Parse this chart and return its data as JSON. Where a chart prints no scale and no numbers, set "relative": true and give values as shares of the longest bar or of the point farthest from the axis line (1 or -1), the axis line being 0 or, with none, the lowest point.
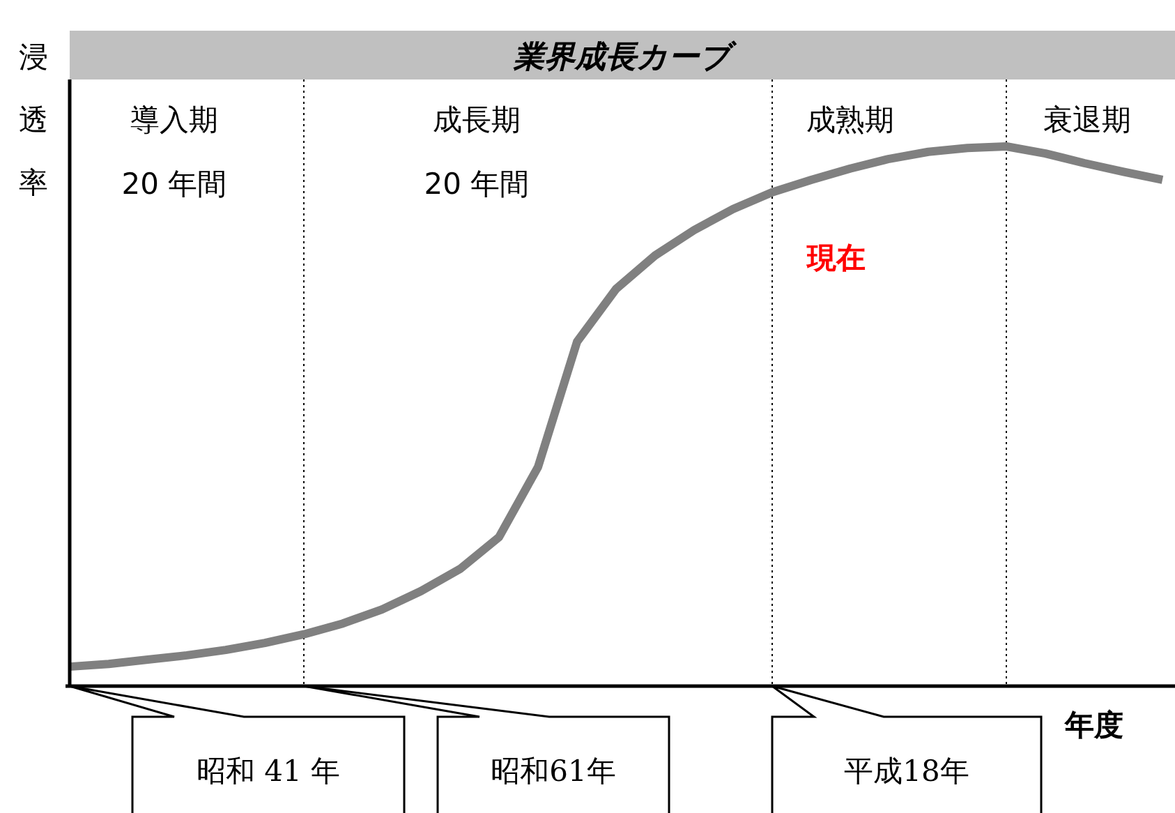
{
  "chart_data": {
    "type": "line",
    "relative": true,
    "title": "業界成長カーブ",
    "ylabel": "浸透率",
    "xlabel": "年度",
    "categories": [
      null,
      null,
      null,
      null,
      null,
      null,
      null,
      null,
      null,
      null,
      null,
      null,
      null,
      null,
      null,
      null,
      null,
      null,
      null,
      null,
      null,
      null,
      null,
      null,
      null,
      null,
      null,
      null,
      null
    ],
    "series": [
      {
        "color": "#808080",
        "values": [
          0.036,
          0.041,
          0.049,
          0.057,
          0.067,
          0.08,
          0.096,
          0.116,
          0.142,
          0.176,
          0.217,
          0.276,
          0.406,
          0.638,
          0.736,
          0.798,
          0.845,
          0.884,
          0.915,
          0.938,
          0.959,
          0.977,
          0.99,
          0.997,
          1,
          0.987,
          0.969,
          0.953,
          0.938
        ]
      }
    ],
    "annotations": [
      "導入期",
      "20 年間",
      "成長期",
      "20 年間",
      "成熟期",
      "衰退期",
      "昭和 41 年",
      "昭和61年",
      "平成18年",
      "現在"
    ],
    "grid": "x",
    "line_style": "solid"
  }
}
